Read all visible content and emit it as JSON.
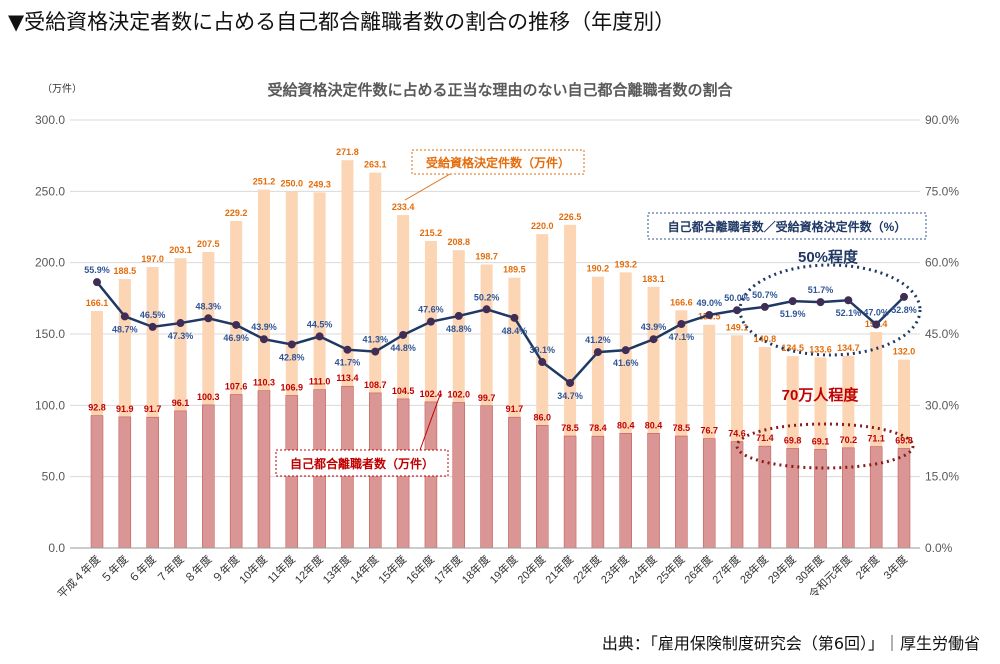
{
  "page_title": "▼受給資格決定者数に占める自己都合離職者数の割合の推移（年度別）",
  "source": "出典：「雇用保険制度研究会（第6回）」｜厚生労働省",
  "chart_data": {
    "type": "bar+line",
    "title": "受給資格決定件数に占める正当な理由のない自己都合離職者数の割合",
    "left_unit": "（万件）",
    "ylim": [
      0,
      300
    ],
    "y2lim": [
      0,
      90
    ],
    "yticks": [
      "0.0",
      "50.0",
      "100.0",
      "150.0",
      "200.0",
      "250.0",
      "300.0"
    ],
    "y2ticks": [
      "0.0%",
      "15.0%",
      "30.0%",
      "45.0%",
      "60.0%",
      "75.0%",
      "90.0%"
    ],
    "categories": [
      "平成４年度",
      "５年度",
      "６年度",
      "７年度",
      "８年度",
      "９年度",
      "10年度",
      "11年度",
      "12年度",
      "13年度",
      "14年度",
      "15年度",
      "16年度",
      "17年度",
      "18年度",
      "19年度",
      "20年度",
      "21年度",
      "22年度",
      "23年度",
      "24年度",
      "25年度",
      "26年度",
      "27年度",
      "28年度",
      "29年度",
      "30年度",
      "令和元年度",
      "2年度",
      "3年度"
    ],
    "series": [
      {
        "name": "受給資格決定件数（万件）",
        "type": "bar",
        "color": "#fcd5b4",
        "label_color": "#e46c0a",
        "values": [
          166.1,
          188.5,
          197.0,
          203.1,
          207.5,
          229.2,
          251.2,
          250.0,
          249.3,
          271.8,
          263.1,
          233.4,
          215.2,
          208.8,
          198.7,
          189.5,
          220.0,
          226.5,
          190.2,
          193.2,
          183.1,
          166.6,
          156.5,
          149.1,
          140.8,
          134.5,
          133.6,
          134.7,
          151.4,
          132.0
        ]
      },
      {
        "name": "自己都合離職者数（万件）",
        "type": "bar",
        "color": "#d99694",
        "label_color": "#c00000",
        "values": [
          92.8,
          91.9,
          91.7,
          96.1,
          100.3,
          107.6,
          110.3,
          106.9,
          111.0,
          113.4,
          108.7,
          104.5,
          102.4,
          102.0,
          99.7,
          91.7,
          86.0,
          78.5,
          78.4,
          80.4,
          80.4,
          78.5,
          76.7,
          74.6,
          71.4,
          69.8,
          69.1,
          70.2,
          71.1,
          69.8
        ]
      },
      {
        "name": "自己都合離職者数／受給資格決定件数（%）",
        "type": "line",
        "axis": "right",
        "color": "#1f3864",
        "label_color": "#2f5597",
        "values": [
          55.9,
          48.7,
          46.5,
          47.3,
          48.3,
          46.9,
          43.9,
          42.8,
          44.5,
          41.7,
          41.3,
          44.8,
          47.6,
          48.8,
          50.2,
          48.4,
          39.1,
          34.7,
          41.2,
          41.6,
          43.9,
          47.1,
          49.0,
          50.0,
          50.7,
          51.9,
          51.7,
          52.1,
          47.0,
          52.8
        ]
      }
    ],
    "annotations": [
      "50%程度",
      "70万人程度"
    ]
  }
}
